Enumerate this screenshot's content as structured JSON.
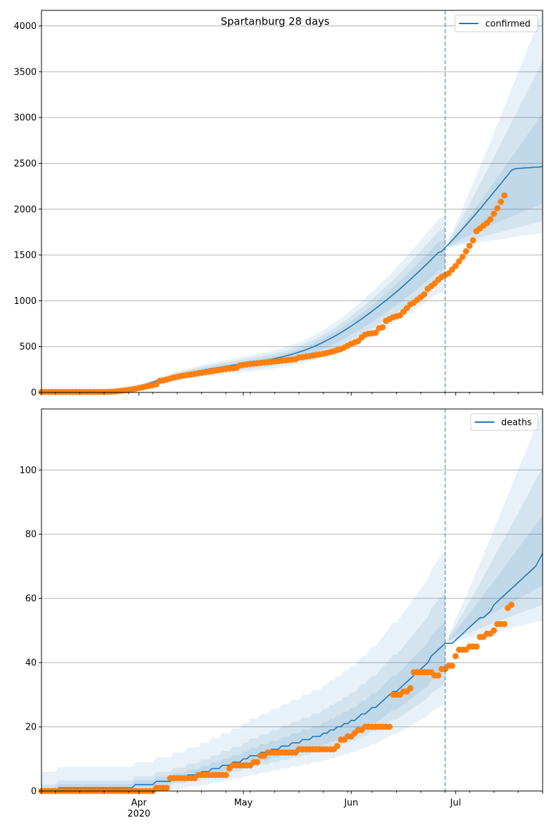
{
  "chart_data": [
    {
      "type": "line",
      "title": "Spartanburg 28 days",
      "legend": {
        "label": "confirmed",
        "placement": "top-right"
      },
      "x_start_date": "2020-03-04",
      "x_end_date": "2020-07-26",
      "forecast_start_date": "2020-06-28",
      "xticks": [
        {
          "date": "2020-04-01",
          "label": "Apr",
          "sublabel": "2020"
        },
        {
          "date": "2020-05-01",
          "label": "May",
          "sublabel": ""
        },
        {
          "date": "2020-06-01",
          "label": "Jun",
          "sublabel": ""
        },
        {
          "date": "2020-07-01",
          "label": "Jul",
          "sublabel": ""
        }
      ],
      "ylim": [
        0,
        4170
      ],
      "yticks": [
        0,
        500,
        1000,
        1500,
        2000,
        2500,
        3000,
        3500,
        4000
      ],
      "grid": "y",
      "observed": {
        "name": "observed confirmed",
        "color": "#ff7f0e",
        "start_day": 0,
        "values": [
          5,
          5,
          5,
          5,
          5,
          5,
          5,
          5,
          5,
          5,
          5,
          5,
          5,
          5,
          5,
          5,
          5,
          5,
          5,
          6,
          8,
          10,
          14,
          18,
          22,
          28,
          34,
          40,
          48,
          56,
          64,
          72,
          80,
          88,
          125,
          130,
          140,
          150,
          162,
          170,
          178,
          185,
          190,
          196,
          202,
          208,
          214,
          220,
          226,
          232,
          238,
          244,
          250,
          256,
          260,
          262,
          266,
          294,
          300,
          305,
          310,
          315,
          318,
          322,
          326,
          330,
          334,
          338,
          342,
          346,
          350,
          354,
          358,
          362,
          380,
          384,
          390,
          396,
          404,
          410,
          416,
          422,
          430,
          440,
          450,
          462,
          474,
          490,
          510,
          530,
          545,
          560,
          600,
          630,
          640,
          645,
          650,
          700,
          710,
          780,
          800,
          820,
          830,
          840,
          880,
          920,
          960,
          980,
          1010,
          1040,
          1070,
          1130,
          1160,
          1190,
          1230,
          1260,
          1280,
          1300,
          1340,
          1380,
          1430,
          1480,
          1540,
          1600,
          1660,
          1760,
          1790,
          1820,
          1850,
          1890,
          1950,
          2010,
          2080,
          2150
        ]
      },
      "median": {
        "name": "confirmed",
        "color": "#1f77b4",
        "start_day": 0,
        "values": [
          5,
          5,
          5,
          5,
          5,
          5,
          5,
          5,
          5,
          5,
          5,
          5,
          5,
          5,
          5,
          5,
          5,
          6,
          8,
          10,
          13,
          17,
          22,
          28,
          34,
          42,
          50,
          58,
          68,
          78,
          88,
          100,
          112,
          124,
          136,
          146,
          156,
          166,
          176,
          184,
          192,
          200,
          208,
          216,
          224,
          232,
          240,
          248,
          254,
          260,
          266,
          272,
          278,
          284,
          290,
          296,
          302,
          308,
          314,
          320,
          326,
          332,
          338,
          344,
          350,
          356,
          362,
          370,
          378,
          386,
          396,
          406,
          416,
          428,
          440,
          452,
          466,
          480,
          496,
          512,
          530,
          548,
          568,
          588,
          608,
          630,
          652,
          676,
          700,
          724,
          750,
          776,
          802,
          830,
          858,
          886,
          914,
          944,
          974,
          1004,
          1034,
          1066,
          1098,
          1130,
          1164,
          1198,
          1232,
          1268,
          1304,
          1340,
          1376,
          1412,
          1450,
          1488,
          1526,
          1540,
          1580,
          1620,
          1660,
          1700,
          1742,
          1784,
          1826,
          1870,
          1914,
          1958,
          2002,
          2048,
          2094,
          2140,
          2186,
          2232,
          2278,
          2326,
          2374,
          2422,
          2440,
          2445,
          2448,
          2450,
          2452,
          2455,
          2458,
          2460,
          2465
        ]
      },
      "band_outer": {
        "lower_end": 1740,
        "upper_end": 4170,
        "at_forecast_start": [
          1120,
          1960
        ]
      },
      "band_mid": {
        "lower_end": 1870,
        "upper_end": 3620,
        "at_forecast_start": [
          1250,
          1820
        ]
      },
      "band_inner": {
        "lower_end": 2060,
        "upper_end": 3050,
        "at_forecast_start": [
          1370,
          1700
        ]
      }
    },
    {
      "type": "line",
      "legend": {
        "label": "deaths",
        "placement": "top-right"
      },
      "x_start_date": "2020-03-04",
      "x_end_date": "2020-07-26",
      "forecast_start_date": "2020-06-28",
      "xticks": [
        {
          "date": "2020-04-01",
          "label": "Apr",
          "sublabel": "2020"
        },
        {
          "date": "2020-05-01",
          "label": "May",
          "sublabel": ""
        },
        {
          "date": "2020-06-01",
          "label": "Jun",
          "sublabel": ""
        },
        {
          "date": "2020-07-01",
          "label": "Jul",
          "sublabel": ""
        }
      ],
      "ylim": [
        0,
        119
      ],
      "yticks": [
        0,
        20,
        40,
        60,
        80,
        100
      ],
      "grid": "y",
      "observed": {
        "name": "observed deaths",
        "color": "#ff7f0e",
        "start_day": 0,
        "values": [
          0,
          0,
          0,
          0,
          0,
          0,
          0,
          0,
          0,
          0,
          0,
          0,
          0,
          0,
          0,
          0,
          0,
          0,
          0,
          0,
          0,
          0,
          0,
          0,
          0,
          0,
          0,
          0,
          0,
          0,
          0,
          0,
          0,
          1,
          1,
          1,
          1,
          4,
          4,
          4,
          4,
          4,
          4,
          4,
          4,
          5,
          5,
          5,
          5,
          5,
          5,
          5,
          5,
          5,
          7,
          8,
          8,
          8,
          8,
          8,
          8,
          9,
          9,
          11,
          11,
          12,
          12,
          12,
          12,
          12,
          12,
          12,
          12,
          12,
          13,
          13,
          13,
          13,
          13,
          13,
          13,
          13,
          13,
          13,
          13,
          14,
          16,
          16,
          17,
          17,
          18,
          19,
          19,
          20,
          20,
          20,
          20,
          20,
          20,
          20,
          20,
          30,
          30,
          30,
          31,
          31,
          32,
          37,
          37,
          37,
          37,
          37,
          37,
          36,
          36,
          38,
          38,
          39,
          39,
          42,
          44,
          44,
          44,
          45,
          45,
          45,
          48,
          48,
          49,
          49,
          50,
          52,
          52,
          52,
          57,
          58
        ]
      },
      "median": {
        "name": "deaths",
        "color": "#1f77b4",
        "start_day": 0,
        "values": [
          0,
          0,
          0,
          0,
          0,
          1,
          1,
          1,
          1,
          1,
          1,
          1,
          1,
          1,
          1,
          1,
          1,
          1,
          1,
          1,
          1,
          1,
          1,
          1,
          1,
          1,
          1,
          2,
          2,
          2,
          2,
          2,
          2,
          3,
          3,
          3,
          3,
          3,
          4,
          4,
          4,
          4,
          5,
          5,
          5,
          5,
          6,
          6,
          6,
          7,
          7,
          7,
          8,
          8,
          8,
          9,
          9,
          9,
          10,
          10,
          11,
          11,
          11,
          12,
          12,
          12,
          13,
          13,
          13,
          14,
          14,
          14,
          15,
          15,
          15,
          16,
          16,
          16,
          17,
          17,
          17,
          18,
          18,
          19,
          19,
          20,
          20,
          21,
          21,
          22,
          22,
          23,
          24,
          24,
          25,
          26,
          26,
          27,
          28,
          29,
          30,
          31,
          31,
          32,
          33,
          34,
          35,
          36,
          37,
          38,
          39,
          40,
          42,
          43,
          44,
          45,
          46,
          46,
          46,
          47,
          48,
          49,
          50,
          51,
          52,
          53,
          54,
          54,
          55,
          56,
          58,
          59,
          60,
          61,
          62,
          63,
          64,
          65,
          66,
          67,
          68,
          69,
          70,
          72,
          74
        ]
      },
      "band_outer": {
        "lower_end": 53,
        "upper_end": 119,
        "at_forecast_start": [
          29,
          69
        ]
      },
      "band_mid": {
        "lower_end": 58,
        "upper_end": 101,
        "at_forecast_start": [
          34,
          60
        ]
      },
      "band_inner": {
        "lower_end": 64,
        "upper_end": 86,
        "at_forecast_start": [
          38,
          52
        ]
      }
    }
  ]
}
